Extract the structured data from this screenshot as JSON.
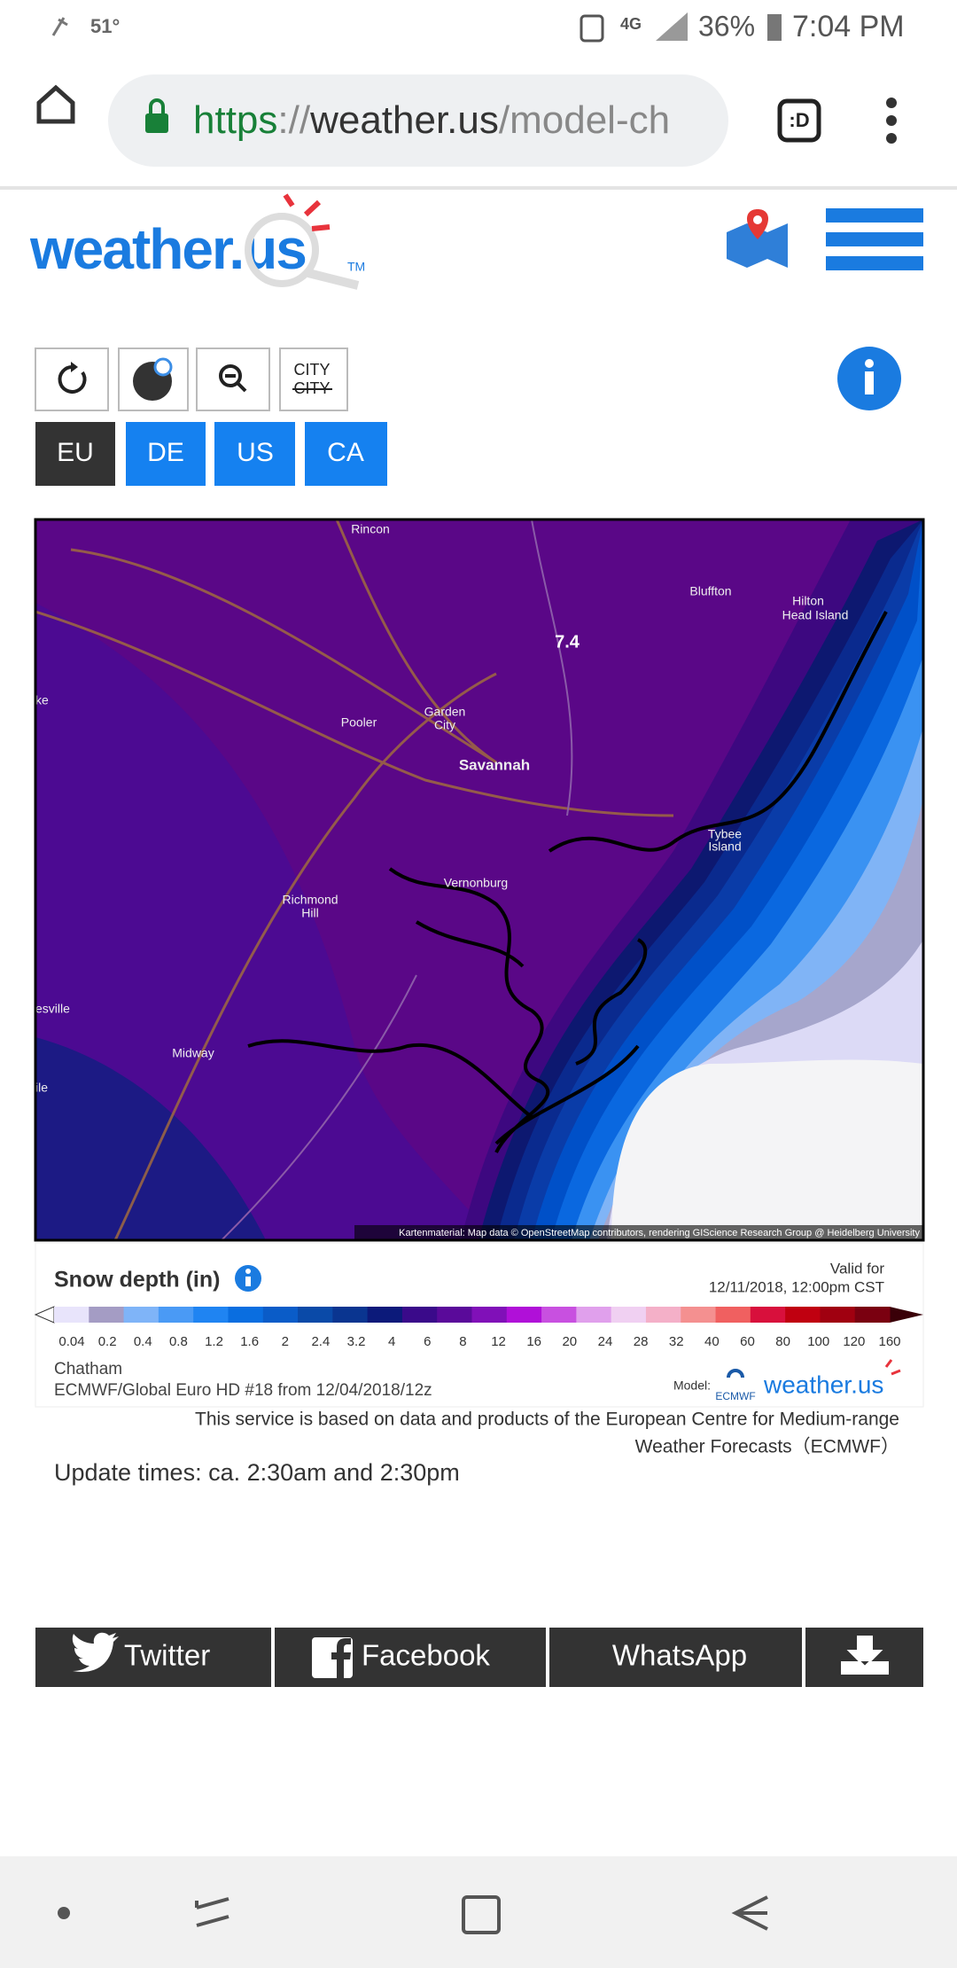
{
  "status_bar": {
    "temperature": "51°",
    "network": "4G",
    "battery": "36%",
    "time": "7:04 PM"
  },
  "browser": {
    "url": {
      "scheme": "https",
      "separator": "://",
      "host": "weather.us",
      "path": "/model-ch"
    },
    "tab_icon": ":D"
  },
  "header": {
    "logo": {
      "text": "weather.",
      "accent": "us",
      "mark": "TM"
    }
  },
  "toolbar": {
    "city_toggle": [
      "CITY",
      "CITY"
    ],
    "regions": [
      "EU",
      "DE",
      "US",
      "CA"
    ]
  },
  "map": {
    "labels": [
      "Rincon",
      "Bluffton",
      "Hilton",
      "Head Island",
      "Pooler",
      "Garden",
      "City",
      "Savannah",
      "Tybee",
      "Island",
      "Vernonburg",
      "Richmond",
      "Hill",
      "esville",
      "Midway",
      "ile",
      "ke"
    ],
    "value_label": "7.4",
    "attribution": "Kartenmaterial: Map data © OpenStreetMap contributors, rendering GIScience Research Group @ Heidelberg University"
  },
  "legend": {
    "title": "Snow depth (in)",
    "valid_label": "Valid for",
    "valid_time": "12/11/2018, 12:00pm CST",
    "levels": [
      "0.04",
      "0.2",
      "0.4",
      "0.8",
      "1.2",
      "1.6",
      "2",
      "2.4",
      "3.2",
      "4",
      "6",
      "8",
      "12",
      "16",
      "20",
      "24",
      "28",
      "32",
      "40",
      "60",
      "80",
      "100",
      "120",
      "160"
    ],
    "colors": [
      "#e8e4fb",
      "#a49cc4",
      "#7fb4f8",
      "#4a9af5",
      "#1f84f2",
      "#0a6ee0",
      "#0a5cc8",
      "#0a4aa8",
      "#0a3590",
      "#0c1a7a",
      "#3a0a8a",
      "#5a0a9a",
      "#8010b8",
      "#b010d8",
      "#c850e0",
      "#e0a0ec",
      "#f0d0f2",
      "#f4b0c8",
      "#f49090",
      "#f06060",
      "#d8103c",
      "#c00010",
      "#a00010",
      "#7a0010"
    ],
    "location": "Chatham",
    "model_run": "ECMWF/Global Euro HD #18 from 12/04/2018/12z",
    "model_label": "Model:",
    "model_logo": "ECMWF",
    "site_logo": "weather.us"
  },
  "notice": [
    "This service is based on data and products of the European Centre for Medium-range",
    "Weather Forecasts（ECMWF）"
  ],
  "update_times": "Update times: ca. 2:30am and 2:30pm",
  "share": [
    "Twitter",
    "Facebook",
    "WhatsApp"
  ]
}
